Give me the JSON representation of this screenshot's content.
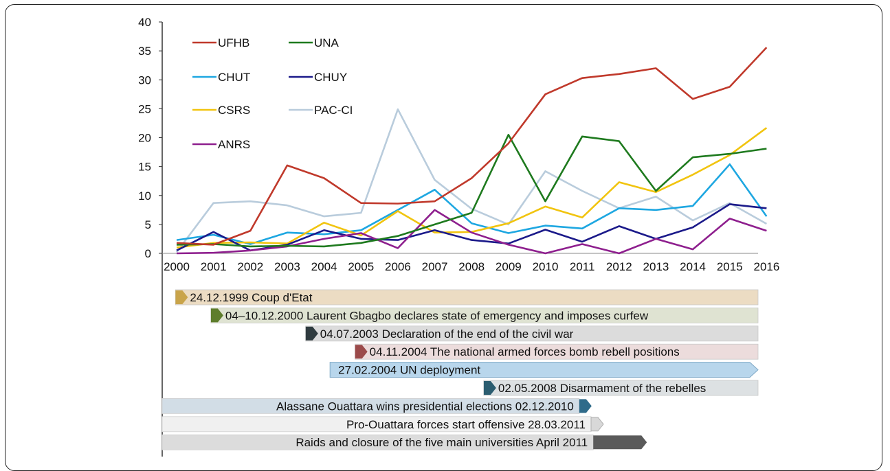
{
  "chart_data": {
    "type": "line",
    "title": "",
    "xlabel": "",
    "ylabel": "",
    "ylim": [
      0,
      40
    ],
    "yticks": [
      "0",
      "5",
      "10",
      "15",
      "20",
      "25",
      "30",
      "35",
      "40"
    ],
    "categories": [
      "2000",
      "2001",
      "2002",
      "2003",
      "2004",
      "2005",
      "2006",
      "2007",
      "2008",
      "2009",
      "2010",
      "2011",
      "2012",
      "2013",
      "2014",
      "2015",
      "2016"
    ],
    "legend_position": "top-left",
    "grid": false,
    "series": [
      {
        "name": "UFHB",
        "color": "#c0392b",
        "values": [
          1.8,
          1.5,
          3.9,
          15.2,
          13.0,
          8.7,
          8.6,
          9.0,
          13.0,
          19.0,
          27.5,
          30.3,
          31.0,
          32.0,
          26.7,
          28.8,
          35.6
        ]
      },
      {
        "name": "UNA",
        "color": "#1e7a1e",
        "values": [
          1.5,
          1.6,
          1.2,
          1.3,
          1.2,
          1.8,
          3.0,
          5.0,
          7.0,
          20.5,
          9.0,
          20.2,
          19.4,
          10.8,
          16.6,
          17.2,
          18.1
        ]
      },
      {
        "name": "CHUT",
        "color": "#1ea7e1",
        "values": [
          2.3,
          3.2,
          1.6,
          3.6,
          3.3,
          4.0,
          7.5,
          11.0,
          5.2,
          3.5,
          4.8,
          4.3,
          7.8,
          7.5,
          8.2,
          15.4,
          6.4
        ]
      },
      {
        "name": "CHUY",
        "color": "#1b1a8a",
        "values": [
          0.5,
          3.7,
          0.5,
          1.5,
          4.0,
          2.5,
          2.3,
          4.0,
          2.3,
          1.7,
          4.1,
          2.0,
          4.7,
          2.5,
          4.5,
          8.5,
          7.8
        ]
      },
      {
        "name": "CSRS",
        "color": "#f1c40f",
        "values": [
          1.0,
          1.8,
          1.9,
          1.7,
          5.3,
          3.1,
          7.3,
          3.6,
          3.7,
          5.2,
          8.1,
          6.2,
          12.3,
          10.6,
          13.6,
          17.0,
          21.7
        ]
      },
      {
        "name": "PAC-CI",
        "color": "#b9ccdc",
        "values": [
          0.2,
          8.7,
          9.0,
          8.3,
          6.4,
          7.0,
          24.9,
          12.7,
          7.7,
          5.0,
          14.2,
          10.8,
          7.8,
          9.8,
          5.7,
          8.7,
          5.1
        ]
      },
      {
        "name": "ANRS",
        "color": "#8e1f8e",
        "values": [
          0.0,
          0.1,
          0.5,
          1.2,
          2.5,
          3.5,
          0.9,
          7.5,
          3.6,
          1.5,
          0.0,
          1.6,
          0.0,
          2.5,
          0.7,
          6.0,
          3.9
        ]
      }
    ]
  },
  "timeline": [
    {
      "label": "24.12.1999 Coup d'Etat",
      "start_year": 1999.97,
      "arrow_side": "left",
      "bar_color": "#ecdcc3",
      "marker_color": "#c9a44a"
    },
    {
      "label": "04–10.12.2000 Laurent Gbagbo declares state of emergency and imposes curfew",
      "start_year": 2000.93,
      "arrow_side": "left",
      "bar_color": "#dfe3d2",
      "marker_color": "#5e7d2c"
    },
    {
      "label": "04.07.2003 Declaration of the end of the civil war",
      "start_year": 2003.5,
      "arrow_side": "left",
      "bar_color": "#dcdcdc",
      "marker_color": "#2f3b3f"
    },
    {
      "label": "04.11.2004 The national armed forces bomb rebell positions",
      "start_year": 2004.84,
      "arrow_side": "left",
      "bar_color": "#ecdcdc",
      "marker_color": "#9b4a4a"
    },
    {
      "label": "27.02.2004 UN deployment",
      "start_year": 2004.16,
      "arrow_side": "right",
      "bar_color": "#b8d6ec",
      "marker_color": "#5f9ec9"
    },
    {
      "label": "02.05.2008 Disarmament of the rebelles",
      "start_year": 2008.33,
      "arrow_side": "left",
      "bar_color": "#dde1e3",
      "marker_color": "#2b5d70"
    },
    {
      "label": "Alassane Ouattara wins presidential elections 02.12.2010",
      "start_year": 2010.92,
      "arrow_side": "right",
      "bar_color": "#d2dde6",
      "marker_color": "#2f6b8a"
    },
    {
      "label": "Pro-Ouattara forces start offensive 28.03.2011",
      "start_year": 2011.24,
      "arrow_side": "right",
      "bar_color": "#f0f0f0",
      "marker_color": "#d8d8d8"
    },
    {
      "label": "Raids and closure of the five main universities April 2011",
      "start_year": 2011.3,
      "arrow_side": "right",
      "bar_color": "#dcdcdc",
      "marker_color": "#5a5a5a"
    }
  ]
}
